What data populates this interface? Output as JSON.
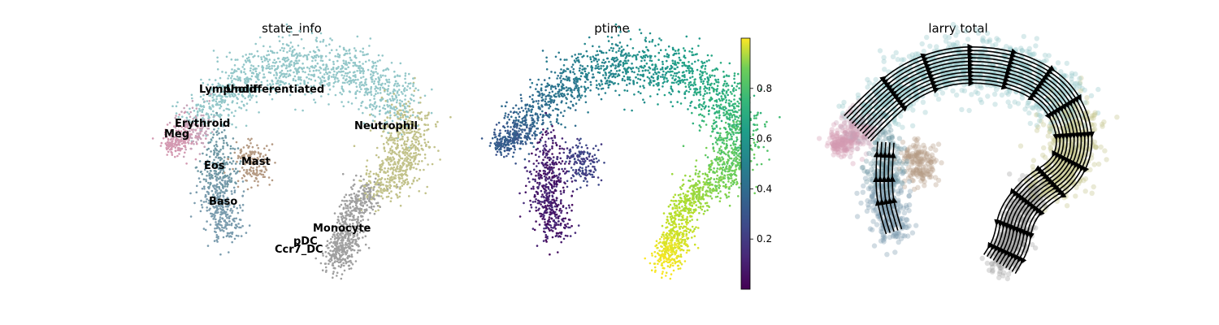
{
  "chart_data": [
    {
      "type": "scatter",
      "title": "state_info",
      "colors": {
        "Undifferentiated": "#93c7c9",
        "Neutrophil": "#c2c28a",
        "Monocyte": "#a0a0a0",
        "pDC": "#a0a0a0",
        "Ccr7_DC": "#a0a0a0",
        "Mast": "#b59a83",
        "Eos": "#6f98a4",
        "Baso": "#7b9cae",
        "Erythroid": "#c6a3b8",
        "Meg": "#d49ab2",
        "Lymphoid": "#9fc5c6"
      },
      "labels": [
        {
          "text": "Lymphoid"
        },
        {
          "text": "Undifferentiated"
        },
        {
          "text": "Erythroid"
        },
        {
          "text": "Meg"
        },
        {
          "text": "Neutrophil"
        },
        {
          "text": "Mast"
        },
        {
          "text": "Eos"
        },
        {
          "text": "Baso"
        },
        {
          "text": "Monocyte"
        },
        {
          "text": "pDC"
        },
        {
          "text": "Ccr7_DC"
        }
      ]
    },
    {
      "type": "scatter",
      "title": "ptime",
      "colormap": "viridis",
      "colorbar": {
        "min": 0.0,
        "max": 1.0,
        "ticks": [
          0.2,
          0.4,
          0.6,
          0.8
        ]
      }
    },
    {
      "type": "scatter",
      "title": "larry total",
      "overlay": "velocity streamlines",
      "streamline_color": "#000000"
    }
  ]
}
